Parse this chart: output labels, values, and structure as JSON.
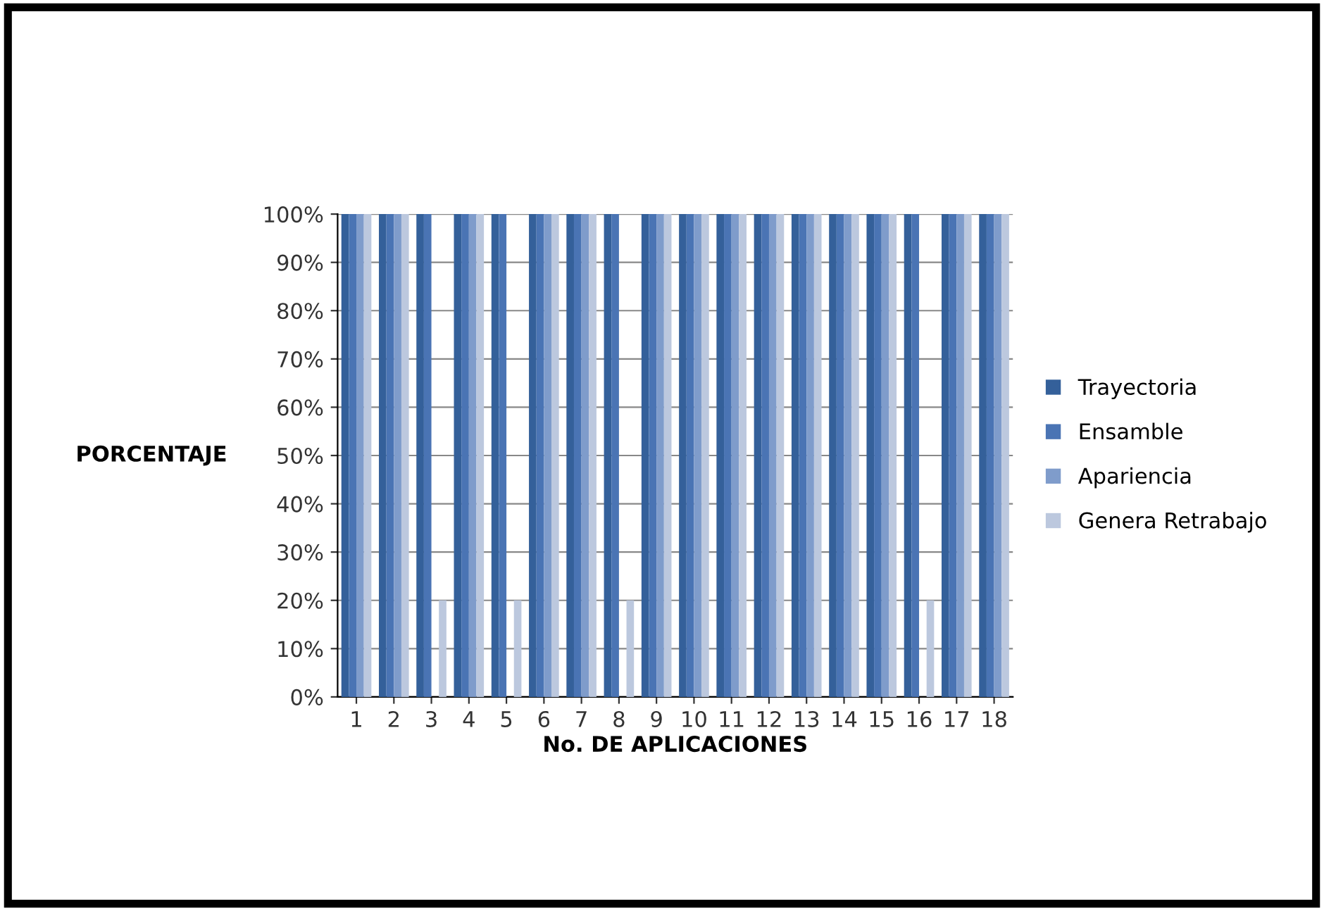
{
  "chart_data": {
    "type": "bar",
    "xlabel": "No. DE APLICACIONES",
    "ylabel": "PORCENTAJE",
    "categories": [
      "1",
      "2",
      "3",
      "4",
      "5",
      "6",
      "7",
      "8",
      "9",
      "10",
      "11",
      "12",
      "13",
      "14",
      "15",
      "16",
      "17",
      "18"
    ],
    "series": [
      {
        "name": "Trayectoria",
        "color": "#34609a",
        "values": [
          100,
          100,
          100,
          100,
          100,
          100,
          100,
          100,
          100,
          100,
          100,
          100,
          100,
          100,
          100,
          100,
          100,
          100
        ]
      },
      {
        "name": "Ensamble",
        "color": "#4a74b4",
        "values": [
          100,
          100,
          100,
          100,
          100,
          100,
          100,
          100,
          100,
          100,
          100,
          100,
          100,
          100,
          100,
          100,
          100,
          100
        ]
      },
      {
        "name": "Apariencia",
        "color": "#7f9ccb",
        "values": [
          100,
          100,
          0,
          100,
          0,
          100,
          100,
          0,
          100,
          100,
          100,
          100,
          100,
          100,
          100,
          0,
          100,
          100
        ]
      },
      {
        "name": "Genera Retrabajo",
        "color": "#bcc8de",
        "values": [
          100,
          100,
          20,
          100,
          20,
          100,
          100,
          20,
          100,
          100,
          100,
          100,
          100,
          100,
          100,
          20,
          100,
          100
        ]
      }
    ],
    "ylim": [
      0,
      100
    ],
    "yticks": [
      {
        "value": 0,
        "label": "0%"
      },
      {
        "value": 10,
        "label": "10%"
      },
      {
        "value": 20,
        "label": "20%"
      },
      {
        "value": 30,
        "label": "30%"
      },
      {
        "value": 40,
        "label": "40%"
      },
      {
        "value": 50,
        "label": "50%"
      },
      {
        "value": 60,
        "label": "60%"
      },
      {
        "value": 70,
        "label": "70%"
      },
      {
        "value": 80,
        "label": "80%"
      },
      {
        "value": 90,
        "label": "90%"
      },
      {
        "value": 100,
        "label": "100%"
      }
    ],
    "grid": "y",
    "legend": "right"
  }
}
